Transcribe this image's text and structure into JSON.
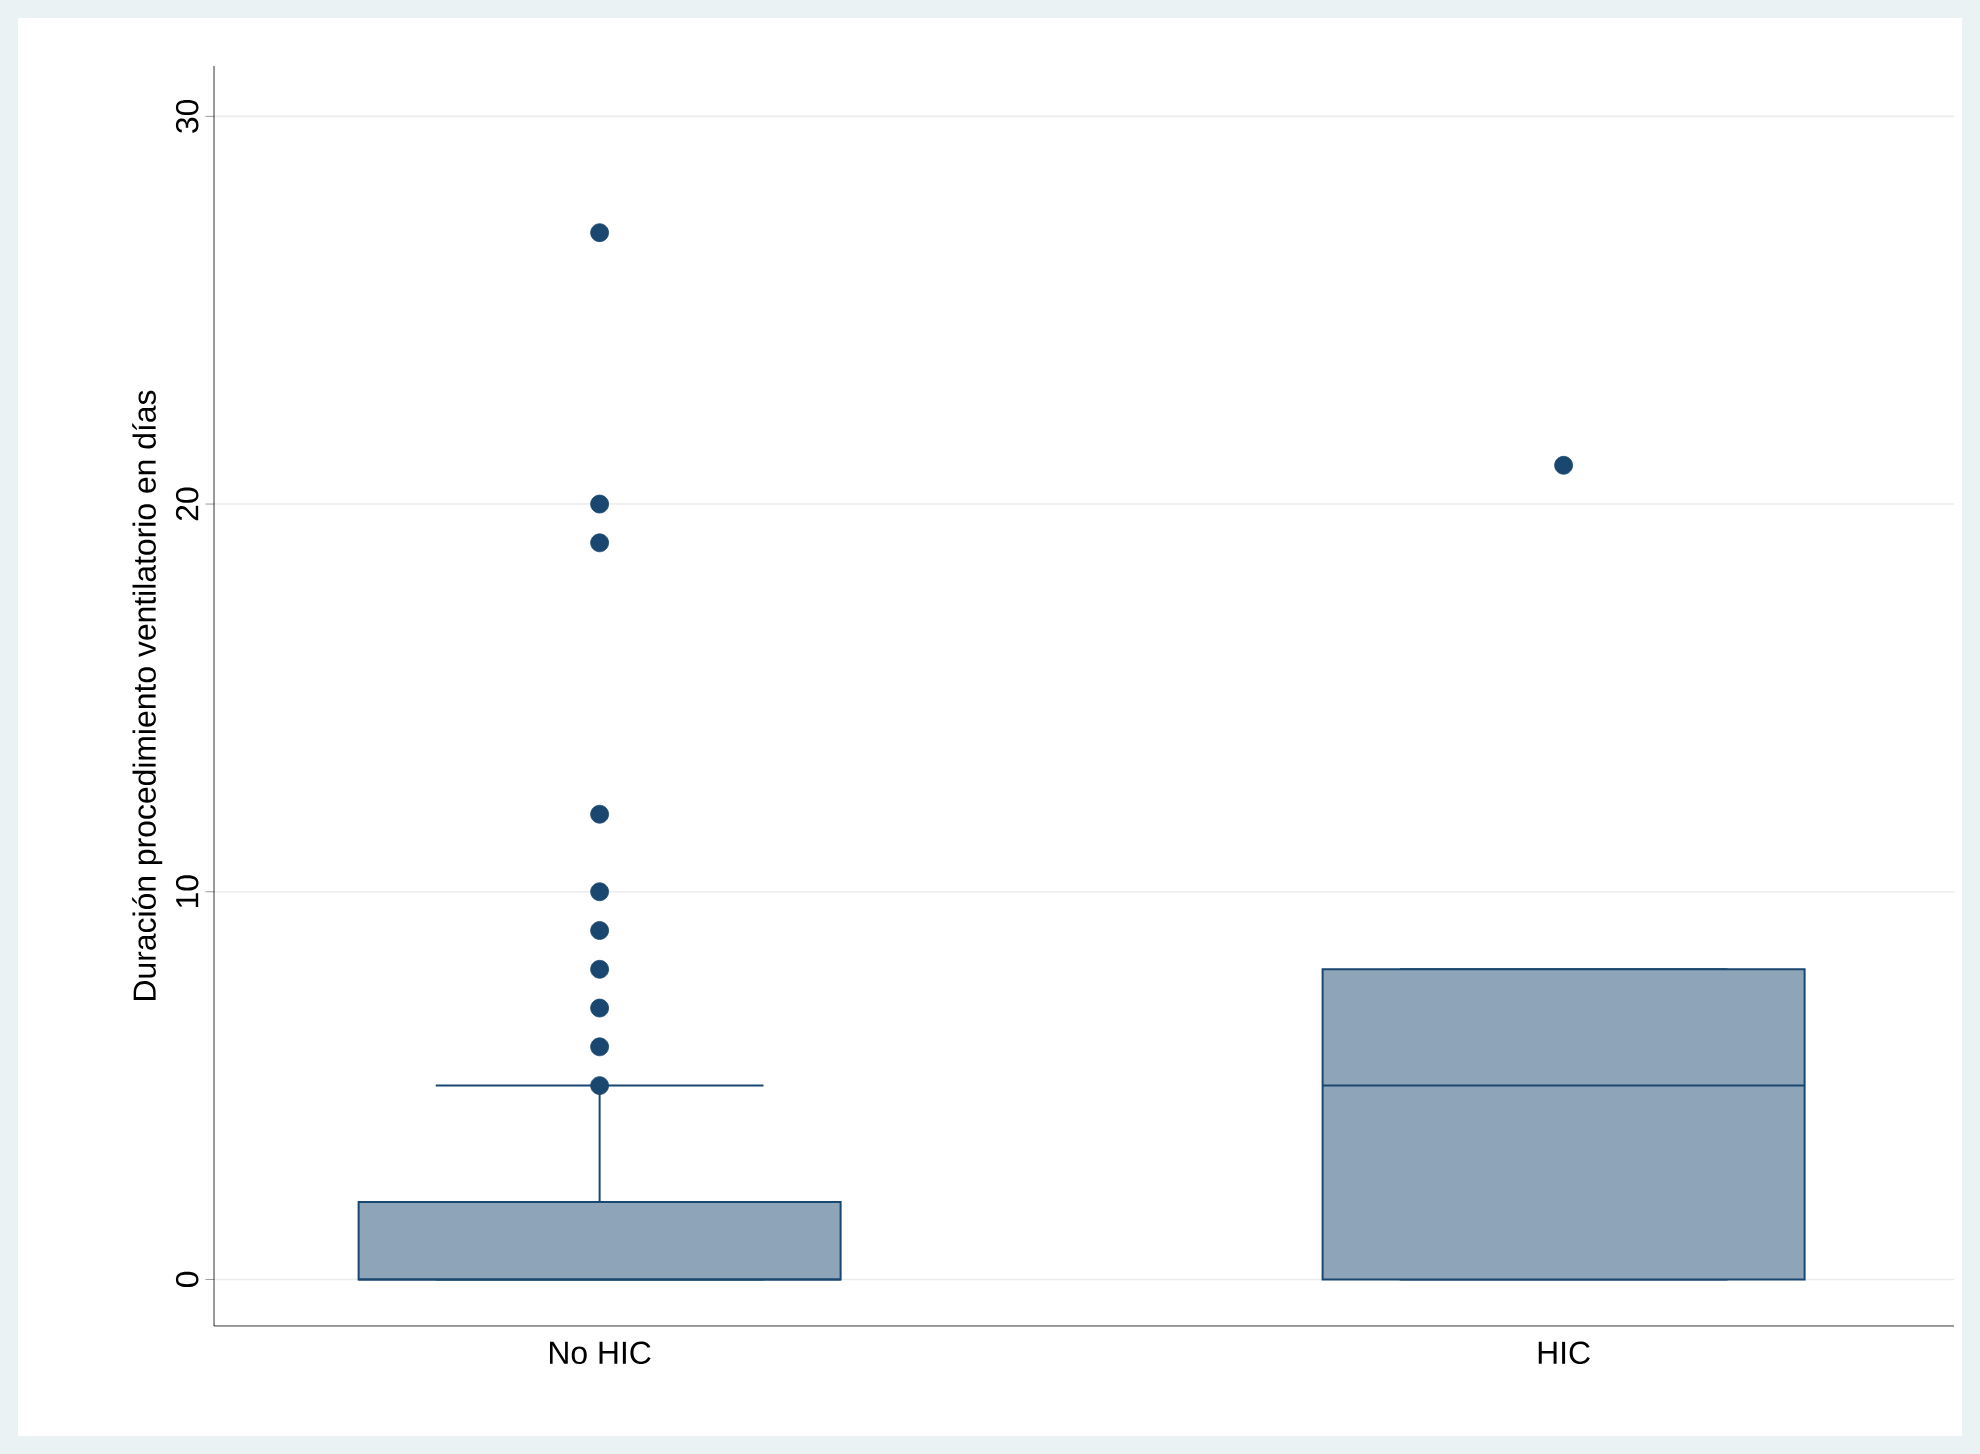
{
  "chart_data": {
    "type": "box",
    "ylabel": "Duración procedimiento ventilatorio en días",
    "categories": [
      "No HIC",
      "HIC"
    ],
    "boxes": [
      {
        "low": 0,
        "q1": 0,
        "median": 0,
        "q3": 2,
        "high": 5,
        "outliers": [
          5,
          6,
          7,
          8,
          9,
          10,
          12,
          19,
          20,
          27
        ]
      },
      {
        "low": 0,
        "q1": 0,
        "median": 5,
        "q3": 8,
        "high": 8,
        "outliers": [
          21
        ]
      }
    ],
    "color": "#8ea4b8",
    "ylim": [
      -1.2,
      31.3
    ],
    "yticks": [
      0,
      10,
      20,
      30
    ],
    "grid": "y",
    "marker": "circle"
  }
}
